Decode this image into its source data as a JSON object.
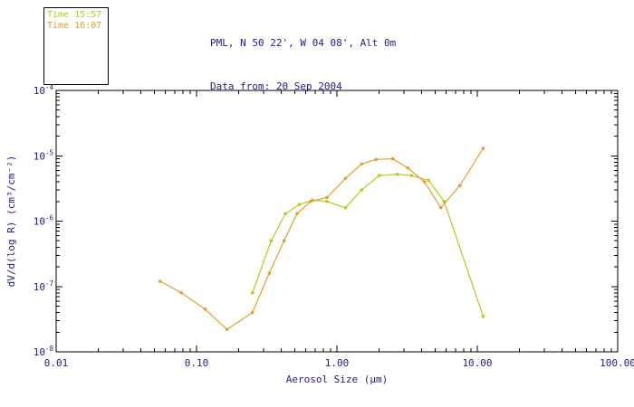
{
  "header": {
    "line1": "PML, N 50 22', W 04 08', Alt 0m",
    "line2": "Data from: 20 Sep 2004"
  },
  "legend": {
    "items": [
      {
        "label": "Time 15:57",
        "color": "#b2cc1c"
      },
      {
        "label": "Time 16:07",
        "color": "#e89b2a"
      }
    ]
  },
  "colors": {
    "text": "#20208c",
    "axis": "#000000",
    "background": "#ffffff"
  },
  "chart_data": {
    "type": "line",
    "title": "",
    "x_scale": "log",
    "y_scale": "log",
    "grid": false,
    "legend_position": "outside-top-left",
    "xlabel": "Aerosol Size (μm)",
    "ylabel": "dV/d(log R) (cm³/cm⁻²)",
    "xlim": [
      0.01,
      100
    ],
    "ylim": [
      1e-08,
      0.0001
    ],
    "x_tick_values": [
      0.01,
      0.1,
      1,
      10,
      100
    ],
    "x_tick_labels": [
      "0.01",
      "0.10",
      "1.00",
      "10.00",
      "100.00"
    ],
    "y_tick_exponents": [
      -8,
      -7,
      -6,
      -5,
      -4
    ],
    "series": [
      {
        "name": "Time 15:57",
        "color": "#b2cc1c",
        "x": [
          0.25,
          0.34,
          0.43,
          0.54,
          0.67,
          0.85,
          1.15,
          1.5,
          2.0,
          2.7,
          3.4,
          4.5,
          5.8,
          11.0
        ],
        "y": [
          8e-08,
          5e-07,
          1.3e-06,
          1.8e-06,
          2.1e-06,
          2e-06,
          1.6e-06,
          3e-06,
          5e-06,
          5.2e-06,
          5e-06,
          4.2e-06,
          2e-06,
          3.5e-08
        ]
      },
      {
        "name": "Time 16:07",
        "color": "#e89b2a",
        "x": [
          0.055,
          0.078,
          0.115,
          0.165,
          0.25,
          0.33,
          0.42,
          0.52,
          0.65,
          0.85,
          1.15,
          1.5,
          1.9,
          2.5,
          3.2,
          4.2,
          5.5,
          7.5,
          11.0
        ],
        "y": [
          1.2e-07,
          8e-08,
          4.5e-08,
          2.2e-08,
          4e-08,
          1.6e-07,
          5e-07,
          1.3e-06,
          2e-06,
          2.3e-06,
          4.5e-06,
          7.5e-06,
          8.8e-06,
          9e-06,
          6.5e-06,
          4e-06,
          1.6e-06,
          3.5e-06,
          1.3e-05
        ]
      }
    ]
  }
}
